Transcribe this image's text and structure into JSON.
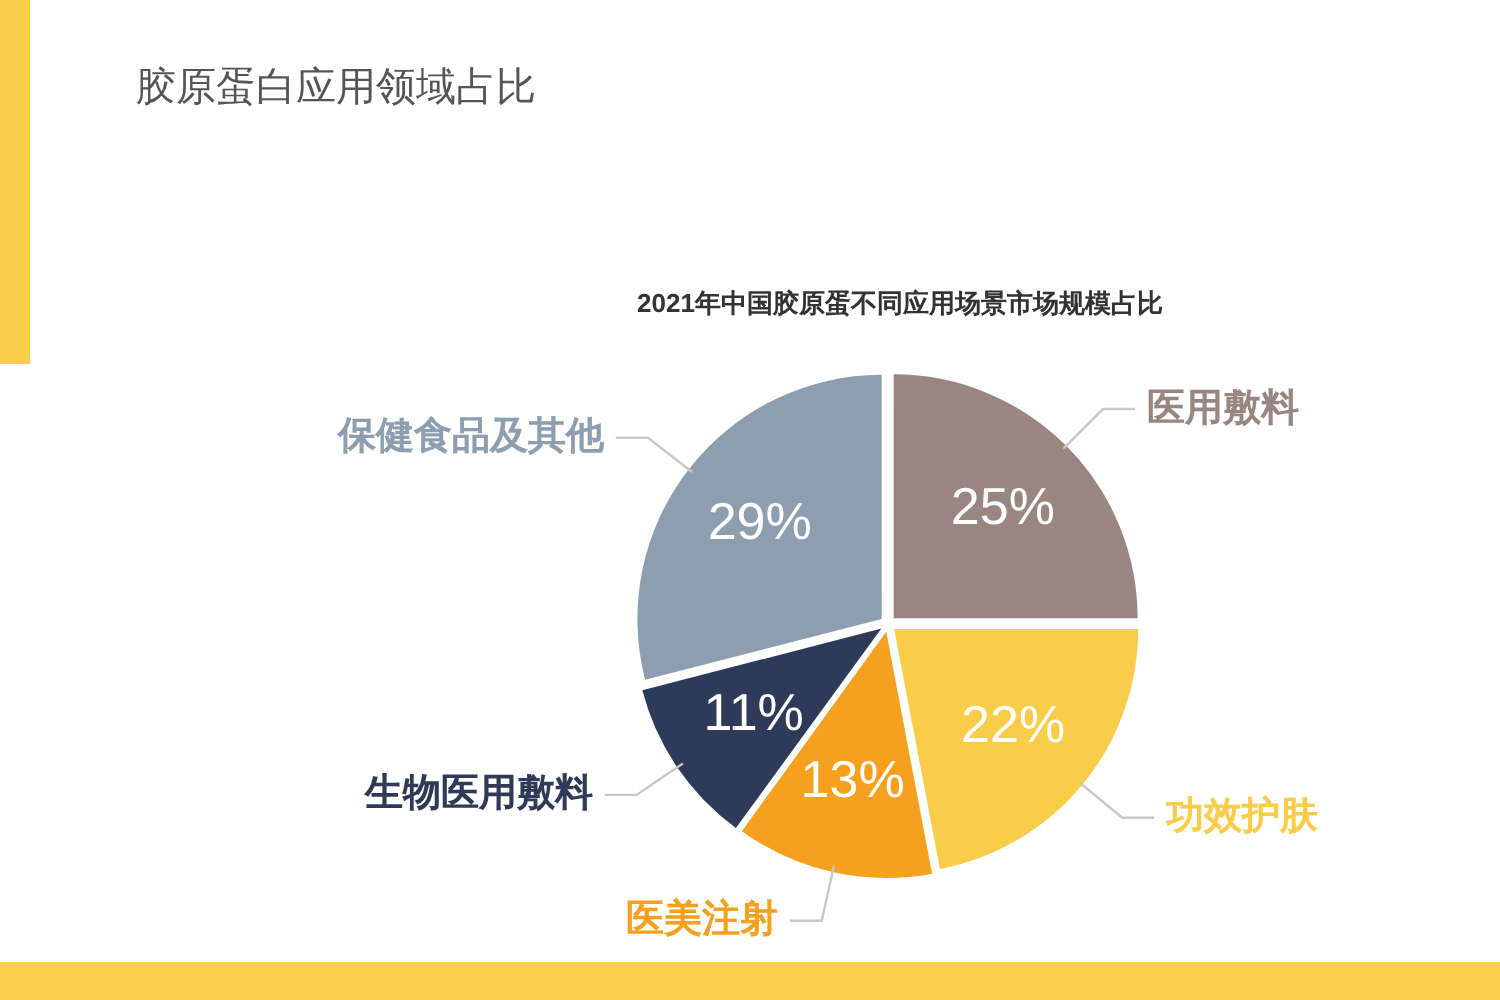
{
  "chart_data": {
    "type": "pie",
    "title": "胶原蛋白应用领域占比",
    "subtitle": "2021年中国胶原蛋不同应用场景市场规模占比",
    "categories": [
      "医用敷料",
      "功效护肤",
      "医美注射",
      "生物医用敷料",
      "保健食品及其他"
    ],
    "values": [
      25,
      22,
      13,
      11,
      29
    ],
    "colors": [
      "#9a8680",
      "#f9cd4a",
      "#f5a01f",
      "#2e3a57",
      "#8d9eb0"
    ],
    "value_labels": [
      "25%",
      "22%",
      "13%",
      "11%",
      "29%"
    ]
  }
}
